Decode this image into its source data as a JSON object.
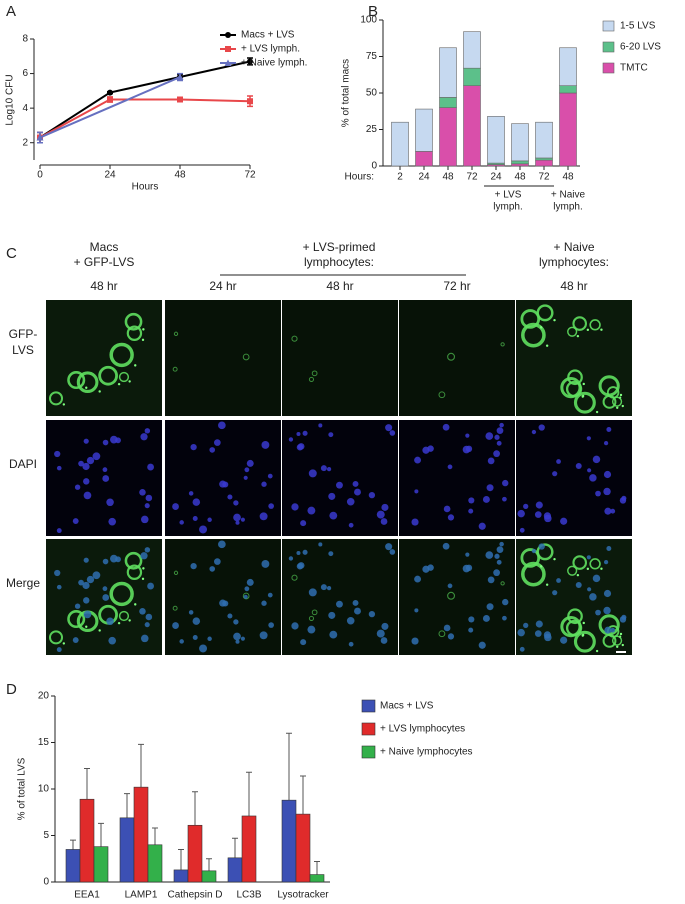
{
  "chart_data": [
    {
      "type": "line",
      "panel": "A",
      "xlabel": "Hours",
      "ylabel": "Log10 CFU",
      "xlim": [
        0,
        72
      ],
      "xticks": [
        0,
        24,
        48,
        72
      ],
      "ylim": [
        1,
        8
      ],
      "yticks": [
        2,
        4,
        6,
        8
      ],
      "series": [
        {
          "name": "Macs + LVS",
          "color": "#000000",
          "marker": "circle",
          "x": [
            0,
            24,
            48,
            72
          ],
          "values": [
            2.3,
            4.9,
            5.8,
            6.7
          ],
          "errors": [
            0.3,
            0.05,
            0.15,
            0.2
          ]
        },
        {
          "name": "+ LVS lymph.",
          "color": "#e8474a",
          "marker": "square",
          "x": [
            0,
            24,
            48,
            72
          ],
          "values": [
            2.3,
            4.5,
            4.5,
            4.4
          ],
          "errors": [
            0.3,
            0.15,
            0.08,
            0.3
          ]
        },
        {
          "name": "+ Naive lymph.",
          "color": "#6670c0",
          "marker": "triangle",
          "x": [
            0,
            48
          ],
          "values": [
            2.3,
            5.8
          ],
          "errors": [
            0.3,
            0.2
          ]
        }
      ]
    },
    {
      "type": "stacked_bar",
      "panel": "B",
      "xlabel": "Hours:",
      "ylabel": "% of total macs",
      "categories": [
        "2",
        "24",
        "48",
        "72",
        "24",
        "48",
        "72",
        "48"
      ],
      "groups": [
        {
          "label": [
            "+ LVS",
            "lymph."
          ]
        },
        {
          "label": [
            "+ Naive",
            "lymph."
          ]
        }
      ],
      "ylim": [
        0,
        100
      ],
      "yticks": [
        0,
        25,
        50,
        75,
        100
      ],
      "series": [
        {
          "name": "1-5 LVS",
          "color": "#c6d9f0",
          "values": [
            30,
            29,
            34,
            25,
            32,
            25.5,
            24.5,
            26
          ]
        },
        {
          "name": "6-20 LVS",
          "color": "#5cc08a",
          "values": [
            0,
            0,
            7,
            12,
            1,
            2,
            1.5,
            5
          ]
        },
        {
          "name": "TMTC",
          "color": "#d94faa",
          "values": [
            0,
            10,
            40,
            55,
            1,
            1.5,
            4,
            50
          ]
        }
      ]
    },
    {
      "type": "grouped_bar",
      "panel": "D",
      "ylabel": "% of total LVS",
      "categories": [
        "EEA1",
        "LAMP1",
        "Cathepsin D",
        "LC3B",
        "Lysotracker"
      ],
      "ylim": [
        0,
        20
      ],
      "yticks": [
        0,
        5,
        10,
        15,
        20
      ],
      "series": [
        {
          "name": "Macs + LVS",
          "color": "#3c50b4",
          "values": [
            3.5,
            6.9,
            1.3,
            2.6,
            8.8
          ],
          "errors": [
            1.0,
            2.6,
            2.2,
            2.1,
            7.2
          ]
        },
        {
          "name": "+ LVS lymphocytes",
          "color": "#e02b2b",
          "values": [
            8.9,
            10.2,
            6.1,
            7.1,
            7.3
          ],
          "errors": [
            3.3,
            4.6,
            3.6,
            4.7,
            4.1
          ]
        },
        {
          "name": "+ Naive lymphocytes",
          "color": "#33b04a",
          "values": [
            3.8,
            4.0,
            1.2,
            null,
            0.8
          ],
          "errors": [
            2.5,
            1.8,
            1.3,
            null,
            1.4
          ]
        }
      ]
    }
  ],
  "image_panel": {
    "panel": "C",
    "columns": [
      {
        "header": [
          "Macs",
          "+ GFP-LVS"
        ],
        "time": "48 hr"
      },
      {
        "time": "24 hr"
      },
      {
        "time": "48 hr"
      },
      {
        "time": "72 hr"
      },
      {
        "header": [
          "+ Naive",
          "lymphocytes:"
        ],
        "time": "48 hr"
      }
    ],
    "group_header": [
      "+ LVS-primed",
      "lymphocytes:"
    ],
    "rows": [
      [
        "GFP-",
        "LVS"
      ],
      [
        "DAPI"
      ],
      [
        "Merge"
      ]
    ]
  }
}
